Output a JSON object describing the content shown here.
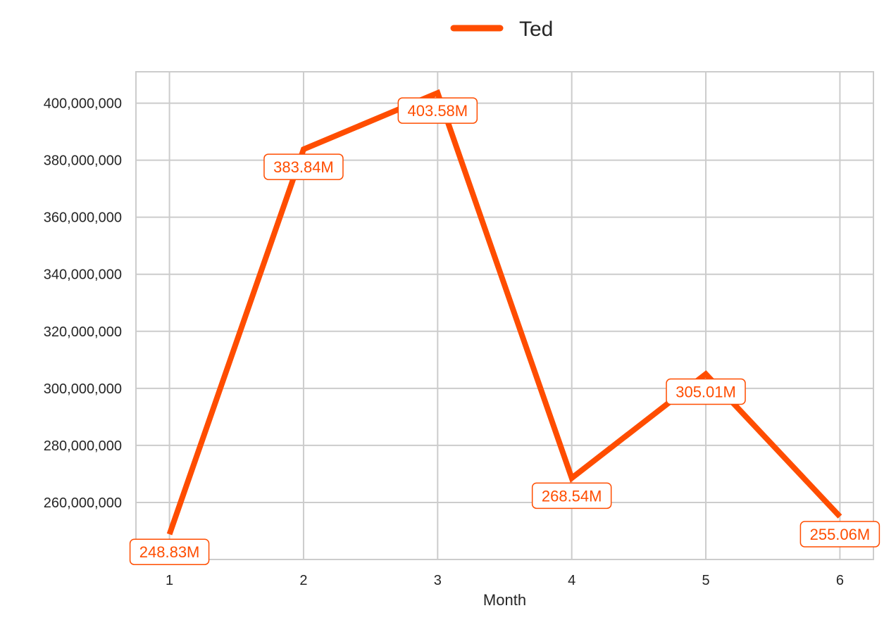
{
  "chart_data": {
    "type": "line",
    "title": "",
    "xlabel": "Month",
    "ylabel": "",
    "x": [
      1,
      2,
      3,
      4,
      5,
      6
    ],
    "x_ticks": [
      "1",
      "2",
      "3",
      "4",
      "5",
      "6"
    ],
    "ylim": [
      240000000,
      411000000
    ],
    "y_ticks": [
      260000000,
      280000000,
      300000000,
      320000000,
      340000000,
      360000000,
      380000000,
      400000000
    ],
    "y_tick_labels": [
      "260,000,000",
      "280,000,000",
      "300,000,000",
      "320,000,000",
      "340,000,000",
      "360,000,000",
      "380,000,000",
      "400,000,000"
    ],
    "grid": true,
    "legend_position": "top-center",
    "series": [
      {
        "name": "Ted",
        "color": "#ff4d00",
        "values": [
          248830000,
          383840000,
          403580000,
          268540000,
          305010000,
          255060000
        ],
        "labels": [
          "248.83M",
          "383.84M",
          "403.58M",
          "268.54M",
          "305.01M",
          "255.06M"
        ]
      }
    ]
  }
}
